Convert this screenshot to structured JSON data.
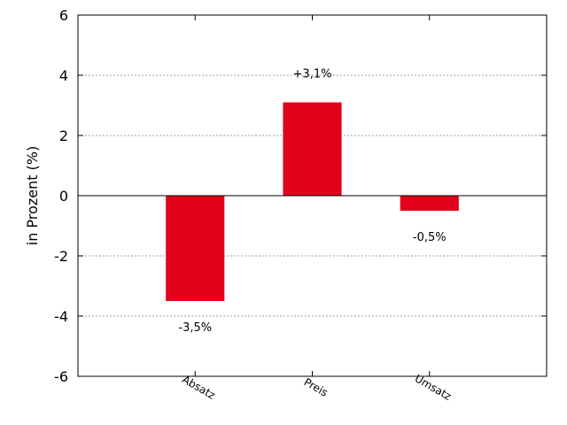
{
  "chart_data": {
    "type": "bar",
    "title": "",
    "xlabel": "",
    "ylabel": "in Prozent (%)",
    "categories": [
      "Absatz",
      "Preis",
      "Umsatz"
    ],
    "values": [
      -3.5,
      3.1,
      -0.5
    ],
    "data_labels": [
      "-3,5%",
      "+3,1%",
      "-0,5%"
    ],
    "ylim": [
      -6,
      6
    ],
    "yticks": [
      -6,
      -4,
      -2,
      0,
      2,
      4,
      6
    ],
    "ytick_labels": [
      "-6",
      "-4",
      "-2",
      "0",
      "2",
      "4",
      "6"
    ],
    "grid": "horizontal dotted",
    "zero_line": true,
    "legend": "none",
    "bar_color": "#e2001a",
    "grid_color": "#a0a0a0",
    "axis_color": "#000000"
  }
}
